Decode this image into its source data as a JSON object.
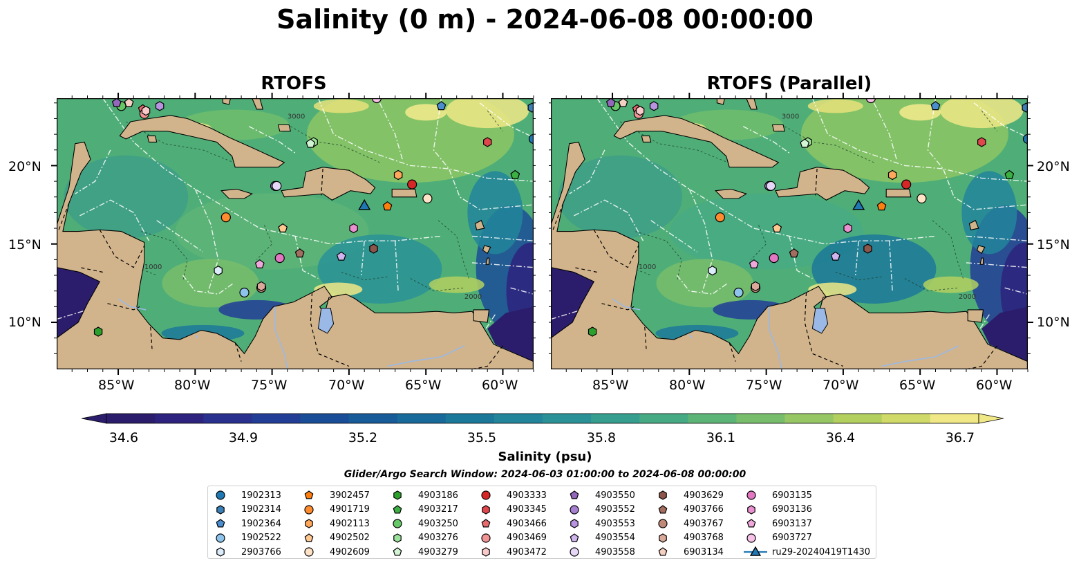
{
  "title": "Salinity (0 m) - 2024-06-08 00:00:00",
  "panels": [
    {
      "title": "RTOFS"
    },
    {
      "title": "RTOFS (Parallel)"
    }
  ],
  "map": {
    "lon_range": [
      -89,
      -58
    ],
    "lat_range": [
      7,
      24.3
    ],
    "lon_ticks": [
      "85°W",
      "80°W",
      "75°W",
      "70°W",
      "65°W",
      "60°W"
    ],
    "lat_ticks": [
      "20°N",
      "15°N",
      "10°N"
    ],
    "contour_labels": [
      "1000",
      "2000",
      "3000"
    ],
    "colors": {
      "land": "#d2b48c",
      "lake": "#9ab9e6",
      "ocean_mid": "#4fb07a",
      "ocean_low": "#24307e",
      "ocean_high": "#f5eb8c"
    }
  },
  "colorbar": {
    "ticks": [
      "34.6",
      "34.9",
      "35.2",
      "35.5",
      "35.8",
      "36.1",
      "36.4",
      "36.7"
    ],
    "label": "Salinity (psu)",
    "min": 34.6,
    "max": 36.7,
    "extend": "both"
  },
  "search_window": "Glider/Argo Search Window: 2024-06-03 01:00:00 to 2024-06-08 00:00:00",
  "legend": {
    "columns": [
      [
        {
          "label": "1902313",
          "color": "#1f77b4",
          "marker": "circle"
        },
        {
          "label": "1902314",
          "color": "#3a7fb5",
          "marker": "hexagon"
        },
        {
          "label": "1902364",
          "color": "#4a8ed0",
          "marker": "pentagon"
        },
        {
          "label": "1902522",
          "color": "#8ec3ec",
          "marker": "circle"
        },
        {
          "label": "2903766",
          "color": "#dcecfb",
          "marker": "hexagon"
        }
      ],
      [
        {
          "label": "3902457",
          "color": "#ff7f0e",
          "marker": "pentagon"
        },
        {
          "label": "4901719",
          "color": "#ff8c2e",
          "marker": "circle"
        },
        {
          "label": "4902113",
          "color": "#ffa85c",
          "marker": "hexagon"
        },
        {
          "label": "4902502",
          "color": "#ffc891",
          "marker": "pentagon"
        },
        {
          "label": "4902609",
          "color": "#ffe3c6",
          "marker": "circle"
        }
      ],
      [
        {
          "label": "4903186",
          "color": "#2ca02c",
          "marker": "hexagon"
        },
        {
          "label": "4903217",
          "color": "#3cb043",
          "marker": "pentagon"
        },
        {
          "label": "4903250",
          "color": "#66c766",
          "marker": "circle"
        },
        {
          "label": "4903276",
          "color": "#9be29b",
          "marker": "hexagon"
        },
        {
          "label": "4903279",
          "color": "#d3f5d3",
          "marker": "pentagon"
        }
      ],
      [
        {
          "label": "4903333",
          "color": "#d62728",
          "marker": "circle"
        },
        {
          "label": "4903345",
          "color": "#e0474c",
          "marker": "hexagon"
        },
        {
          "label": "4903466",
          "color": "#e86a6e",
          "marker": "pentagon"
        },
        {
          "label": "4903469",
          "color": "#f29494",
          "marker": "circle"
        },
        {
          "label": "4903472",
          "color": "#f9c8c8",
          "marker": "hexagon"
        }
      ],
      [
        {
          "label": "4903550",
          "color": "#9467bd",
          "marker": "pentagon"
        },
        {
          "label": "4903552",
          "color": "#a67fd0",
          "marker": "circle"
        },
        {
          "label": "4903553",
          "color": "#b894e0",
          "marker": "hexagon"
        },
        {
          "label": "4903554",
          "color": "#cfb4ee",
          "marker": "pentagon"
        },
        {
          "label": "4903558",
          "color": "#e6d6f8",
          "marker": "circle"
        }
      ],
      [
        {
          "label": "4903629",
          "color": "#8c564b",
          "marker": "hexagon"
        },
        {
          "label": "4903766",
          "color": "#a36e5f",
          "marker": "pentagon"
        },
        {
          "label": "4903767",
          "color": "#c08a78",
          "marker": "circle"
        },
        {
          "label": "4903768",
          "color": "#dba99a",
          "marker": "hexagon"
        },
        {
          "label": "6903134",
          "color": "#f4cfc2",
          "marker": "pentagon"
        }
      ],
      [
        {
          "label": "6903135",
          "color": "#e377c2",
          "marker": "circle"
        },
        {
          "label": "6903136",
          "color": "#ea8fcf",
          "marker": "hexagon"
        },
        {
          "label": "6903137",
          "color": "#f0a8dc",
          "marker": "pentagon"
        },
        {
          "label": "6903727",
          "color": "#f7c2e8",
          "marker": "circle"
        },
        {
          "label": "ru29-20240419T1430",
          "color": "#1f77b4",
          "marker": "triangle"
        }
      ]
    ]
  },
  "floats": [
    {
      "label": "1902313",
      "lon": -58.0,
      "lat": 21.7
    },
    {
      "label": "1902314",
      "lon": -58.1,
      "lat": 23.7
    },
    {
      "label": "1902364",
      "lon": -64.0,
      "lat": 23.8
    },
    {
      "label": "1902522",
      "lon": -76.8,
      "lat": 11.9
    },
    {
      "label": "2903766",
      "lon": -78.5,
      "lat": 13.3
    },
    {
      "label": "3902457",
      "lon": -67.5,
      "lat": 17.4
    },
    {
      "label": "4901719",
      "lon": -78.0,
      "lat": 16.7
    },
    {
      "label": "4902113",
      "lon": -66.8,
      "lat": 19.4
    },
    {
      "label": "4902502",
      "lon": -74.3,
      "lat": 16.0
    },
    {
      "label": "4902609",
      "lon": -64.9,
      "lat": 17.9
    },
    {
      "label": "4903186",
      "lon": -86.3,
      "lat": 9.4
    },
    {
      "label": "4903217",
      "lon": -59.2,
      "lat": 19.4
    },
    {
      "label": "4903250",
      "lon": -84.8,
      "lat": 23.8
    },
    {
      "label": "4903276",
      "lon": -72.3,
      "lat": 21.5
    },
    {
      "label": "4903279",
      "lon": -72.5,
      "lat": 21.4
    },
    {
      "label": "4903333",
      "lon": -65.9,
      "lat": 18.8
    },
    {
      "label": "4903345",
      "lon": -61.0,
      "lat": 21.5
    },
    {
      "label": "4903466",
      "lon": -83.4,
      "lat": 23.6
    },
    {
      "label": "4903469",
      "lon": -83.3,
      "lat": 23.3
    },
    {
      "label": "4903472",
      "lon": -83.2,
      "lat": 23.5
    },
    {
      "label": "4903550",
      "lon": -85.1,
      "lat": 24.0
    },
    {
      "label": "4903552",
      "lon": -74.8,
      "lat": 18.7
    },
    {
      "label": "4903553",
      "lon": -82.3,
      "lat": 23.8
    },
    {
      "label": "4903554",
      "lon": -70.5,
      "lat": 14.2
    },
    {
      "label": "4903558",
      "lon": -74.7,
      "lat": 18.7
    },
    {
      "label": "4903629",
      "lon": -68.4,
      "lat": 14.7
    },
    {
      "label": "4903766",
      "lon": -73.2,
      "lat": 14.4
    },
    {
      "label": "4903767",
      "lon": -75.7,
      "lat": 12.2
    },
    {
      "label": "4903768",
      "lon": -75.7,
      "lat": 12.3
    },
    {
      "label": "6903134",
      "lon": -84.3,
      "lat": 24.0
    },
    {
      "label": "6903135",
      "lon": -74.5,
      "lat": 14.1
    },
    {
      "label": "6903136",
      "lon": -69.7,
      "lat": 16.0
    },
    {
      "label": "6903137",
      "lon": -75.8,
      "lat": 13.7
    },
    {
      "label": "6903727",
      "lon": -68.2,
      "lat": 24.3
    }
  ],
  "glider": {
    "label": "ru29-20240419T1430",
    "lon": -69.0,
    "lat": 17.4
  }
}
